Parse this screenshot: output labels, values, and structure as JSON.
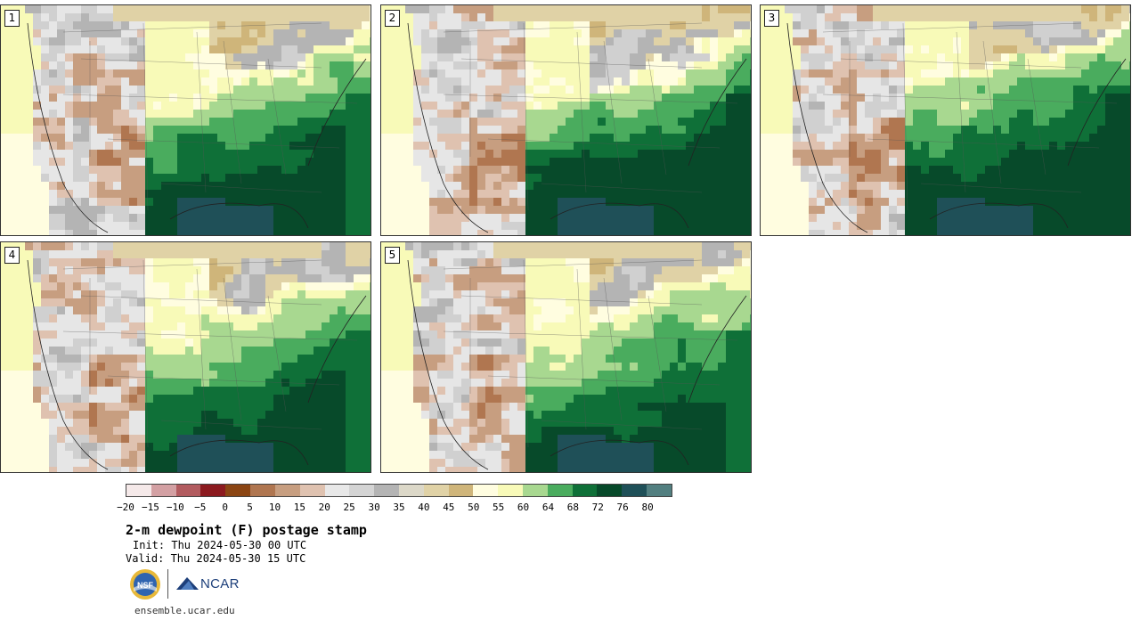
{
  "stamps": [
    {
      "label": "1"
    },
    {
      "label": "2"
    },
    {
      "label": "3"
    },
    {
      "label": "4"
    },
    {
      "label": "5"
    }
  ],
  "colorbar": {
    "colors": [
      "#f5e9e9",
      "#d3a0a3",
      "#b25b5f",
      "#8c1a1f",
      "#8b4513",
      "#b07650",
      "#c79e80",
      "#dfc2b0",
      "#e8e8e8",
      "#d4d4d4",
      "#b4b4b4",
      "#dcd8c8",
      "#e0d2a6",
      "#cfb57a",
      "#fffde0",
      "#f8fab8",
      "#a8d890",
      "#4aac5e",
      "#0f7038",
      "#074a2a",
      "#1f5058",
      "#527f80"
    ],
    "labels": [
      "−20",
      "−15",
      "−10",
      "−5",
      "0",
      "5",
      "10",
      "15",
      "20",
      "25",
      "30",
      "35",
      "40",
      "45",
      "50",
      "55",
      "60",
      "64",
      "68",
      "72",
      "76",
      "80"
    ]
  },
  "title": "2-m dewpoint (F) postage stamp",
  "init": "Init: Thu 2024-05-30 00 UTC",
  "valid": "Valid: Thu 2024-05-30 15 UTC",
  "logos": {
    "nsf": "NSF",
    "ncar": "NCAR"
  },
  "site": "ensemble.ucar.edu"
}
